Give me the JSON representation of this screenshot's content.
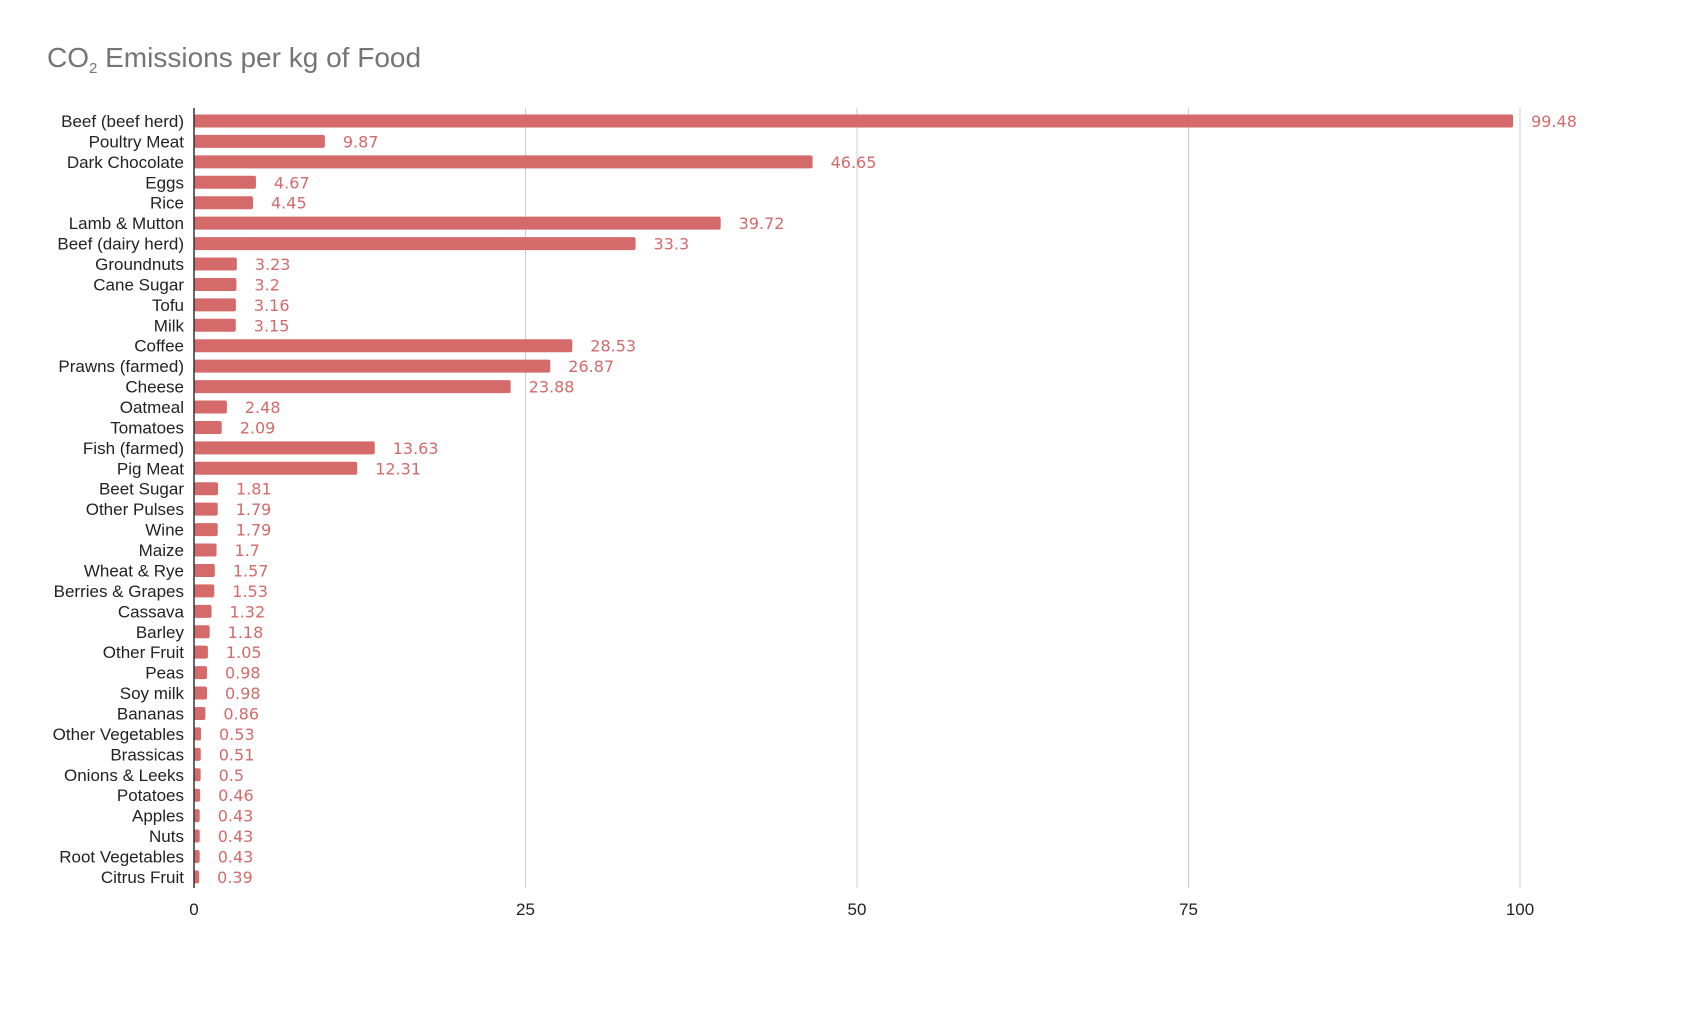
{
  "chart_data": {
    "type": "bar",
    "orientation": "horizontal",
    "title": {
      "prefix": "CO",
      "subscript": "2",
      "suffix": " Emissions per kg of Food"
    },
    "xlim": [
      0,
      100
    ],
    "xticks": [
      0,
      25,
      50,
      75,
      100
    ],
    "grid": "vertical",
    "bar_color": "#d46a6a",
    "label_color": "#d46a6a",
    "grid_color": "#cccccc",
    "categories": [
      "Beef (beef herd)",
      "Poultry Meat",
      "Dark Chocolate",
      "Eggs",
      "Rice",
      "Lamb & Mutton",
      "Beef (dairy herd)",
      "Groundnuts",
      "Cane Sugar",
      "Tofu",
      "Milk",
      "Coffee",
      "Prawns (farmed)",
      "Cheese",
      "Oatmeal",
      "Tomatoes",
      "Fish (farmed)",
      "Pig Meat",
      "Beet Sugar",
      "Other Pulses",
      "Wine",
      "Maize",
      "Wheat & Rye",
      "Berries & Grapes",
      "Cassava",
      "Barley",
      "Other Fruit",
      "Peas",
      "Soy milk",
      "Bananas",
      "Other Vegetables",
      "Brassicas",
      "Onions & Leeks",
      "Potatoes",
      "Apples",
      "Nuts",
      "Root Vegetables",
      "Citrus Fruit"
    ],
    "values": [
      99.48,
      9.87,
      46.65,
      4.67,
      4.45,
      39.72,
      33.3,
      3.23,
      3.2,
      3.16,
      3.15,
      28.53,
      26.87,
      23.88,
      2.48,
      2.09,
      13.63,
      12.31,
      1.81,
      1.79,
      1.79,
      1.7,
      1.57,
      1.53,
      1.32,
      1.18,
      1.05,
      0.98,
      0.98,
      0.86,
      0.53,
      0.51,
      0.5,
      0.46,
      0.43,
      0.43,
      0.43,
      0.39
    ],
    "value_labels": [
      "99.48",
      "9.87",
      "46.65",
      "4.67",
      "4.45",
      "39.72",
      "33.3",
      "3.23",
      "3.2",
      "3.16",
      "3.15",
      "28.53",
      "26.87",
      "23.88",
      "2.48",
      "2.09",
      "13.63",
      "12.31",
      "1.81",
      "1.79",
      "1.79",
      "1.7",
      "1.57",
      "1.53",
      "1.32",
      "1.18",
      "1.05",
      "0.98",
      "0.98",
      "0.86",
      "0.53",
      "0.51",
      "0.5",
      "0.46",
      "0.43",
      "0.43",
      "0.43",
      "0.39"
    ]
  }
}
